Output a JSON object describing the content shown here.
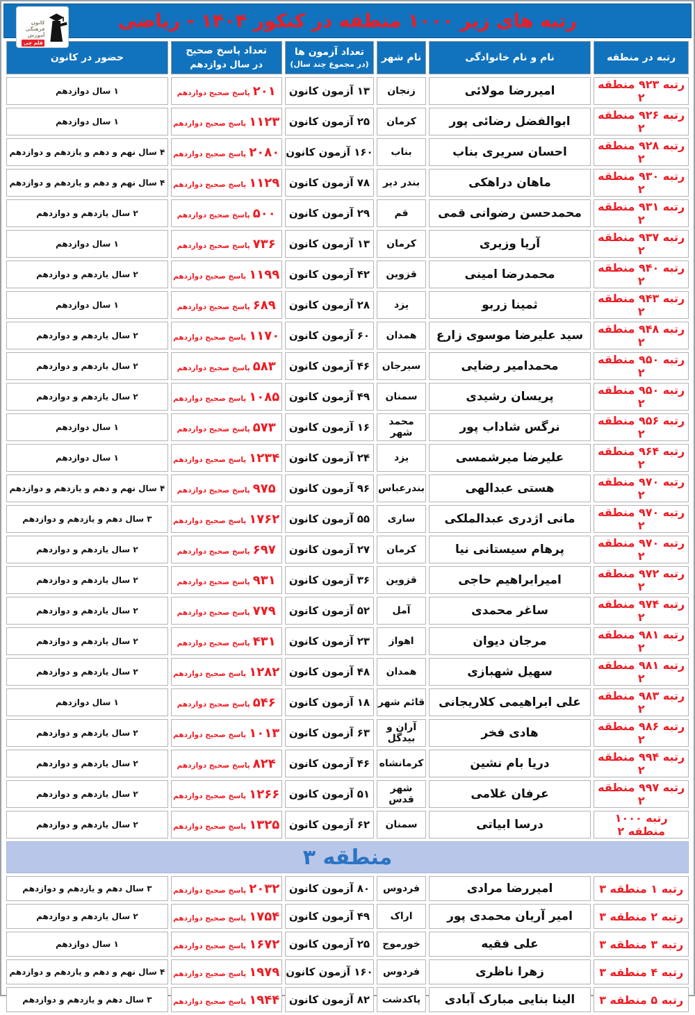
{
  "header": {
    "title": "رتبه های زیر ۱۰۰۰ منطقه در کنکور ۱۴۰۴ - ریاضی",
    "logo": {
      "l1": "کانون",
      "l2": "فرهنگی",
      "l3": "آموزش",
      "badge": "قلم چی"
    }
  },
  "columns": {
    "rank": "رتبه در منطقه",
    "name": "نام و نام خانوادگی",
    "city": "نام شهر",
    "exams_line1": "تعداد آزمون ها",
    "exams_line2": "(در مجموع چند سال)",
    "correct_line1": "تعداد پاسخ صحیح",
    "correct_line2": "در سال دوازدهم",
    "attendance": "حضور در کانون"
  },
  "labels": {
    "exam_suffix": "آزمون کانون",
    "correct_suffix": "پاسخ صحیح دوازدهم"
  },
  "colors": {
    "header_blue": "#1173bd",
    "accent_red": "#ed1c24",
    "divider_bg": "#b8c7e9",
    "divider_text": "#2c73c4"
  },
  "sections": [
    {
      "divider": null,
      "rows": [
        {
          "rank": "رتبه ۹۲۳ منطقه ۲",
          "name": "امیررضا مولائی",
          "city": "زنجان",
          "exams": "۱۳",
          "correct": "۲۰۱",
          "attendance": "۱ سال دوازدهم"
        },
        {
          "rank": "رتبه ۹۲۶ منطقه ۲",
          "name": "ابوالفضل رضائی پور",
          "city": "کرمان",
          "exams": "۲۵",
          "correct": "۱۱۲۳",
          "attendance": "۱ سال دوازدهم"
        },
        {
          "rank": "رتبه ۹۲۸ منطقه ۲",
          "name": "احسان سریری بناب",
          "city": "بناب",
          "exams": "۱۶۰",
          "correct": "۲۰۸۰",
          "attendance": "۴ سال نهم و دهم و یازدهم و دوازدهم"
        },
        {
          "rank": "رتبه ۹۳۰ منطقه ۲",
          "name": "ماهان دراهکی",
          "city": "بندر دیر",
          "exams": "۷۸",
          "correct": "۱۱۲۹",
          "attendance": "۴ سال نهم و دهم و یازدهم و دوازدهم"
        },
        {
          "rank": "رتبه ۹۳۱ منطقه ۲",
          "name": "محمدحسن رضوانی قمی",
          "city": "قم",
          "exams": "۲۹",
          "correct": "۵۰۰",
          "attendance": "۲ سال یازدهم و دوازدهم"
        },
        {
          "rank": "رتبه ۹۳۷ منطقه ۲",
          "name": "آریا وزیری",
          "city": "کرمان",
          "exams": "۱۳",
          "correct": "۷۳۶",
          "attendance": "۱ سال دوازدهم"
        },
        {
          "rank": "رتبه ۹۴۰ منطقه ۲",
          "name": "محمدرضا امینی",
          "city": "قزوین",
          "exams": "۴۲",
          "correct": "۱۱۹۹",
          "attendance": "۲ سال یازدهم و دوازدهم"
        },
        {
          "rank": "رتبه ۹۴۳ منطقه ۲",
          "name": "ثمینا زربو",
          "city": "یزد",
          "exams": "۲۸",
          "correct": "۶۸۹",
          "attendance": "۱ سال دوازدهم"
        },
        {
          "rank": "رتبه ۹۴۸ منطقه ۲",
          "name": "سید علیرضا موسوی زارع",
          "city": "همدان",
          "exams": "۶۰",
          "correct": "۱۱۷۰",
          "attendance": "۲ سال یازدهم و دوازدهم"
        },
        {
          "rank": "رتبه ۹۵۰ منطقه ۲",
          "name": "محمدامیر رضایی",
          "city": "سیرجان",
          "exams": "۴۶",
          "correct": "۵۸۳",
          "attendance": "۲ سال یازدهم و دوازدهم"
        },
        {
          "rank": "رتبه ۹۵۰ منطقه ۲",
          "name": "پریسان رشیدی",
          "city": "سمنان",
          "exams": "۴۹",
          "correct": "۱۰۸۵",
          "attendance": "۲ سال یازدهم و دوازدهم"
        },
        {
          "rank": "رتبه ۹۵۶ منطقه ۲",
          "name": "نرگس شاداب پور",
          "city": "محمد شهر",
          "exams": "۱۶",
          "correct": "۵۷۳",
          "attendance": "۱ سال دوازدهم"
        },
        {
          "rank": "رتبه ۹۶۴ منطقه ۲",
          "name": "علیرضا میرشمسی",
          "city": "یزد",
          "exams": "۲۴",
          "correct": "۱۲۳۴",
          "attendance": "۱ سال دوازدهم"
        },
        {
          "rank": "رتبه ۹۷۰ منطقه ۲",
          "name": "هستی عبدالهی",
          "city": "بندرعباس",
          "exams": "۹۶",
          "correct": "۹۷۵",
          "attendance": "۴ سال نهم و دهم و یازدهم و دوازدهم"
        },
        {
          "rank": "رتبه ۹۷۰ منطقه ۲",
          "name": "مانی اژدری عبدالملکی",
          "city": "ساری",
          "exams": "۵۵",
          "correct": "۱۷۶۲",
          "attendance": "۳ سال دهم و یازدهم و دوازدهم"
        },
        {
          "rank": "رتبه ۹۷۰ منطقه ۲",
          "name": "پرهام سیستانی نیا",
          "city": "کرمان",
          "exams": "۲۷",
          "correct": "۶۹۷",
          "attendance": "۲ سال یازدهم و دوازدهم"
        },
        {
          "rank": "رتبه ۹۷۲ منطقه ۲",
          "name": "امیرابراهیم حاجی",
          "city": "قزوین",
          "exams": "۳۶",
          "correct": "۹۳۱",
          "attendance": "۲ سال یازدهم و دوازدهم"
        },
        {
          "rank": "رتبه ۹۷۴ منطقه ۲",
          "name": "ساغر محمدی",
          "city": "آمل",
          "exams": "۵۲",
          "correct": "۷۷۹",
          "attendance": "۲ سال یازدهم و دوازدهم"
        },
        {
          "rank": "رتبه ۹۸۱ منطقه ۲",
          "name": "مرجان دیوان",
          "city": "اهواز",
          "exams": "۲۳",
          "correct": "۴۳۱",
          "attendance": "۲ سال یازدهم و دوازدهم"
        },
        {
          "rank": "رتبه ۹۸۱ منطقه ۲",
          "name": "سهیل شهبازی",
          "city": "همدان",
          "exams": "۴۸",
          "correct": "۱۲۸۲",
          "attendance": "۲ سال یازدهم و دوازدهم"
        },
        {
          "rank": "رتبه ۹۸۳ منطقه ۲",
          "name": "علی ابراهیمی کلاریجانی",
          "city": "قائم شهر",
          "exams": "۱۸",
          "correct": "۵۴۶",
          "attendance": "۱ سال دوازدهم"
        },
        {
          "rank": "رتبه ۹۸۶ منطقه ۲",
          "name": "هادی فخر",
          "city": "آران و بیدگل",
          "exams": "۶۳",
          "correct": "۱۰۱۳",
          "attendance": "۲ سال یازدهم و دوازدهم"
        },
        {
          "rank": "رتبه ۹۹۴ منطقه ۲",
          "name": "دریا بام نشین",
          "city": "کرمانشاه",
          "exams": "۴۶",
          "correct": "۸۲۴",
          "attendance": "۲ سال یازدهم و دوازدهم"
        },
        {
          "rank": "رتبه ۹۹۷ منطقه ۲",
          "name": "عرفان غلامی",
          "city": "شهر قدس",
          "exams": "۵۱",
          "correct": "۱۲۶۶",
          "attendance": "۲ سال یازدهم و دوازدهم"
        },
        {
          "rank": "رتبه ۱۰۰۰ منطقه ۲",
          "name": "درسا ابیاتی",
          "city": "سمنان",
          "exams": "۶۲",
          "correct": "۱۳۲۵",
          "attendance": "۲ سال یازدهم و دوازدهم"
        }
      ]
    },
    {
      "divider": "منطقه ۳",
      "rows": [
        {
          "rank": "رتبه ۱ منطقه ۳",
          "name": "امیررضا مرادی",
          "city": "فردوس",
          "exams": "۸۰",
          "correct": "۲۰۳۲",
          "attendance": "۳ سال دهم و یازدهم و دوازدهم"
        },
        {
          "rank": "رتبه ۲ منطقه ۳",
          "name": "امیر آریان محمدی پور",
          "city": "اراک",
          "exams": "۴۹",
          "correct": "۱۷۵۴",
          "attendance": "۲ سال یازدهم و دوازدهم"
        },
        {
          "rank": "رتبه ۳ منطقه ۳",
          "name": "علی فقیه",
          "city": "خورموج",
          "exams": "۲۵",
          "correct": "۱۶۷۲",
          "attendance": "۱ سال دوازدهم"
        },
        {
          "rank": "رتبه ۴ منطقه ۳",
          "name": "زهرا ناظری",
          "city": "فردوس",
          "exams": "۱۶۰",
          "correct": "۱۹۷۹",
          "attendance": "۴ سال نهم و دهم و یازدهم و دوازدهم"
        },
        {
          "rank": "رتبه ۵ منطقه ۳",
          "name": "الینا بنایی مبارک آبادی",
          "city": "پاکدشت",
          "exams": "۸۲",
          "correct": "۱۹۴۴",
          "attendance": "۳ سال دهم و یازدهم و دوازدهم"
        }
      ]
    }
  ]
}
